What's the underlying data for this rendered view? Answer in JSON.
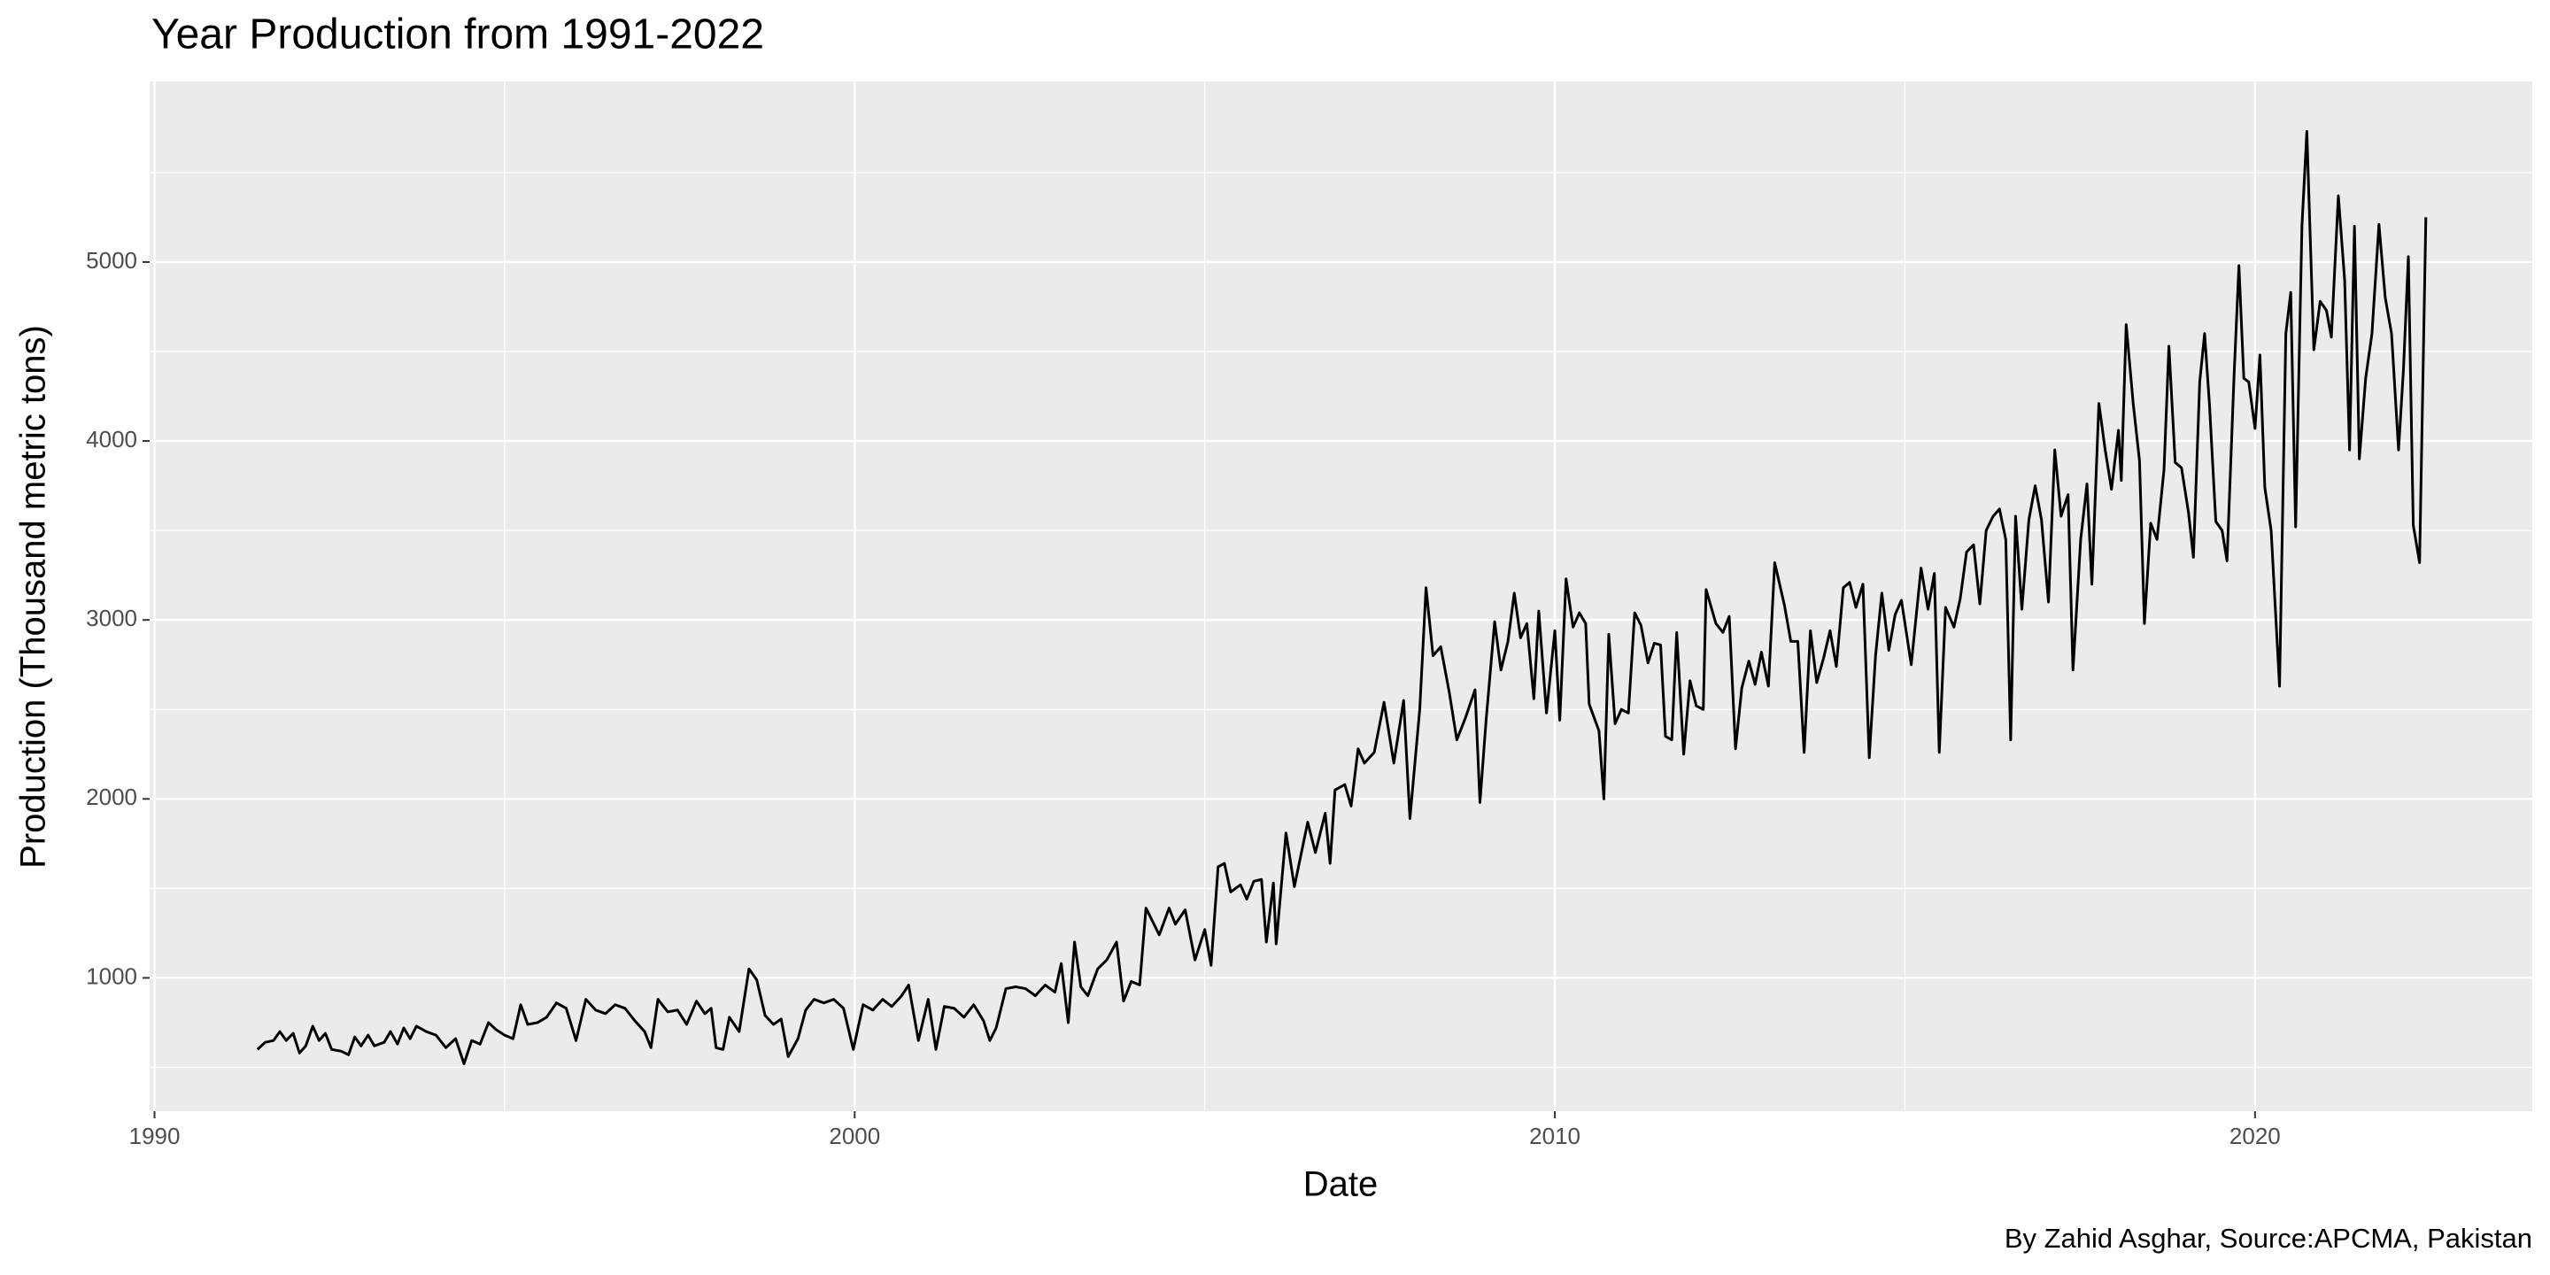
{
  "chart_data": {
    "type": "line",
    "title": "Year Production from 1991-2022",
    "x_label": "Date",
    "y_label": "Production (Thousand metric tons)",
    "caption": "By Zahid Asghar, Source:APCMA, Pakistan",
    "color": "#000000",
    "grid": true,
    "xlim": [
      1989.93,
      2023.96
    ],
    "ylim": [
      255,
      6009
    ],
    "xticks": [
      1990,
      2000,
      2010,
      2020
    ],
    "yticks": [
      1000,
      2000,
      3000,
      4000,
      5000
    ],
    "x_minor_ticks": [
      1995,
      2005,
      2015
    ],
    "y_minor_ticks": [
      500,
      1500,
      2500,
      3500,
      4500,
      5500
    ],
    "x": [
      1991.47,
      1991.58,
      1991.7,
      1991.79,
      1991.88,
      1991.98,
      1992.07,
      1992.16,
      1992.26,
      1992.35,
      1992.44,
      1992.53,
      1992.67,
      1992.77,
      1992.86,
      1992.95,
      1993.05,
      1993.14,
      1993.28,
      1993.37,
      1993.47,
      1993.56,
      1993.65,
      1993.74,
      1993.88,
      1994.02,
      1994.16,
      1994.3,
      1994.42,
      1994.53,
      1994.65,
      1994.77,
      1994.88,
      1995.0,
      1995.12,
      1995.23,
      1995.33,
      1995.47,
      1995.6,
      1995.74,
      1995.88,
      1996.02,
      1996.16,
      1996.3,
      1996.44,
      1996.58,
      1996.72,
      1996.86,
      1997.0,
      1997.09,
      1997.19,
      1997.33,
      1997.47,
      1997.6,
      1997.74,
      1997.86,
      1997.95,
      1998.02,
      1998.12,
      1998.21,
      1998.35,
      1998.49,
      1998.6,
      1998.72,
      1998.84,
      1998.95,
      1999.05,
      1999.19,
      1999.3,
      1999.42,
      1999.56,
      1999.7,
      1999.84,
      1999.98,
      2000.12,
      2000.26,
      2000.4,
      2000.53,
      2000.67,
      2000.77,
      2000.91,
      2001.05,
      2001.16,
      2001.28,
      2001.42,
      2001.56,
      2001.7,
      2001.84,
      2001.93,
      2002.02,
      2002.16,
      2002.3,
      2002.44,
      2002.58,
      2002.72,
      2002.86,
      2002.95,
      2003.05,
      2003.14,
      2003.23,
      2003.33,
      2003.47,
      2003.6,
      2003.74,
      2003.84,
      2003.95,
      2004.07,
      2004.16,
      2004.35,
      2004.49,
      2004.58,
      2004.72,
      2004.86,
      2005.0,
      2005.09,
      2005.19,
      2005.28,
      2005.37,
      2005.51,
      2005.6,
      2005.7,
      2005.81,
      2005.88,
      2005.98,
      2006.02,
      2006.16,
      2006.28,
      2006.47,
      2006.58,
      2006.72,
      2006.79,
      2006.86,
      2007.0,
      2007.09,
      2007.19,
      2007.28,
      2007.42,
      2007.56,
      2007.7,
      2007.84,
      2007.93,
      2008.07,
      2008.16,
      2008.26,
      2008.37,
      2008.49,
      2008.6,
      2008.72,
      2008.86,
      2008.93,
      2009.02,
      2009.14,
      2009.23,
      2009.33,
      2009.42,
      2009.51,
      2009.6,
      2009.7,
      2009.77,
      2009.88,
      2010.0,
      2010.07,
      2010.16,
      2010.26,
      2010.35,
      2010.44,
      2010.49,
      2010.63,
      2010.7,
      2010.77,
      2010.86,
      2010.95,
      2011.05,
      2011.14,
      2011.23,
      2011.33,
      2011.42,
      2011.51,
      2011.58,
      2011.67,
      2011.74,
      2011.84,
      2011.93,
      2012.02,
      2012.12,
      2012.16,
      2012.3,
      2012.4,
      2012.49,
      2012.58,
      2012.67,
      2012.77,
      2012.86,
      2012.95,
      2013.05,
      2013.14,
      2013.28,
      2013.37,
      2013.47,
      2013.56,
      2013.65,
      2013.74,
      2013.84,
      2013.93,
      2014.02,
      2014.12,
      2014.21,
      2014.3,
      2014.4,
      2014.49,
      2014.58,
      2014.67,
      2014.77,
      2014.86,
      2014.95,
      2015.09,
      2015.23,
      2015.33,
      2015.42,
      2015.49,
      2015.58,
      2015.7,
      2015.79,
      2015.88,
      2015.98,
      2016.07,
      2016.16,
      2016.26,
      2016.35,
      2016.44,
      2016.51,
      2016.58,
      2016.67,
      2016.77,
      2016.86,
      2016.95,
      2017.05,
      2017.14,
      2017.23,
      2017.33,
      2017.4,
      2017.51,
      2017.6,
      2017.67,
      2017.77,
      2017.86,
      2017.95,
      2018.05,
      2018.09,
      2018.16,
      2018.26,
      2018.35,
      2018.42,
      2018.51,
      2018.6,
      2018.7,
      2018.77,
      2018.86,
      2018.95,
      2019.05,
      2019.12,
      2019.21,
      2019.28,
      2019.35,
      2019.44,
      2019.53,
      2019.6,
      2019.7,
      2019.77,
      2019.84,
      2019.91,
      2020.0,
      2020.07,
      2020.14,
      2020.23,
      2020.35,
      2020.44,
      2020.51,
      2020.58,
      2020.67,
      2020.74,
      2020.84,
      2020.93,
      2021.02,
      2021.09,
      2021.19,
      2021.28,
      2021.35,
      2021.42,
      2021.49,
      2021.58,
      2021.67,
      2021.77,
      2021.86,
      2021.95,
      2022.05,
      2022.12,
      2022.19,
      2022.26,
      2022.35,
      2022.44
    ],
    "values": [
      600,
      640,
      650,
      700,
      650,
      690,
      580,
      620,
      730,
      650,
      690,
      600,
      590,
      570,
      670,
      620,
      680,
      620,
      640,
      700,
      630,
      720,
      660,
      730,
      700,
      680,
      610,
      660,
      520,
      650,
      630,
      750,
      710,
      680,
      660,
      850,
      740,
      750,
      780,
      860,
      830,
      650,
      880,
      820,
      800,
      850,
      830,
      760,
      700,
      610,
      880,
      810,
      820,
      740,
      870,
      800,
      830,
      610,
      600,
      780,
      700,
      1050,
      990,
      790,
      740,
      770,
      560,
      660,
      820,
      880,
      860,
      880,
      830,
      600,
      850,
      820,
      880,
      840,
      900,
      960,
      650,
      880,
      600,
      840,
      830,
      780,
      850,
      760,
      650,
      720,
      940,
      950,
      940,
      900,
      960,
      920,
      1080,
      750,
      1200,
      950,
      900,
      1050,
      1100,
      1200,
      870,
      980,
      960,
      1390,
      1240,
      1390,
      1300,
      1380,
      1100,
      1270,
      1070,
      1620,
      1640,
      1480,
      1520,
      1440,
      1540,
      1550,
      1200,
      1530,
      1190,
      1810,
      1510,
      1870,
      1700,
      1920,
      1640,
      2050,
      2080,
      1960,
      2280,
      2200,
      2260,
      2540,
      2200,
      2550,
      1890,
      2500,
      3180,
      2800,
      2850,
      2600,
      2330,
      2450,
      2610,
      1980,
      2450,
      2990,
      2720,
      2880,
      3150,
      2900,
      2980,
      2560,
      3050,
      2480,
      2940,
      2440,
      3230,
      2960,
      3040,
      2980,
      2530,
      2380,
      2000,
      2920,
      2420,
      2500,
      2480,
      3040,
      2970,
      2760,
      2870,
      2860,
      2350,
      2330,
      2930,
      2250,
      2660,
      2520,
      2500,
      3170,
      2980,
      2930,
      3020,
      2280,
      2620,
      2770,
      2640,
      2820,
      2630,
      3320,
      3080,
      2880,
      2880,
      2260,
      2940,
      2650,
      2790,
      2940,
      2740,
      3180,
      3210,
      3070,
      3200,
      2230,
      2800,
      3150,
      2830,
      3030,
      3110,
      2750,
      3290,
      3060,
      3260,
      2260,
      3070,
      2960,
      3120,
      3380,
      3420,
      3090,
      3500,
      3580,
      3620,
      3450,
      2330,
      3580,
      3060,
      3560,
      3750,
      3560,
      3100,
      3950,
      3580,
      3700,
      2720,
      3450,
      3760,
      3200,
      4210,
      3950,
      3730,
      4060,
      3780,
      4650,
      4210,
      3890,
      2980,
      3540,
      3450,
      3840,
      4530,
      3880,
      3850,
      3600,
      3350,
      4330,
      4600,
      4200,
      3550,
      3500,
      3330,
      4360,
      4980,
      4350,
      4330,
      4070,
      4480,
      3740,
      3500,
      2630,
      4600,
      4830,
      3520,
      5200,
      5730,
      4510,
      4780,
      4730,
      4580,
      5370,
      4900,
      3950,
      5200,
      3900,
      4350,
      4600,
      5210,
      4800,
      4600,
      3950,
      4400,
      5030,
      3530,
      3320,
      5250
    ]
  }
}
